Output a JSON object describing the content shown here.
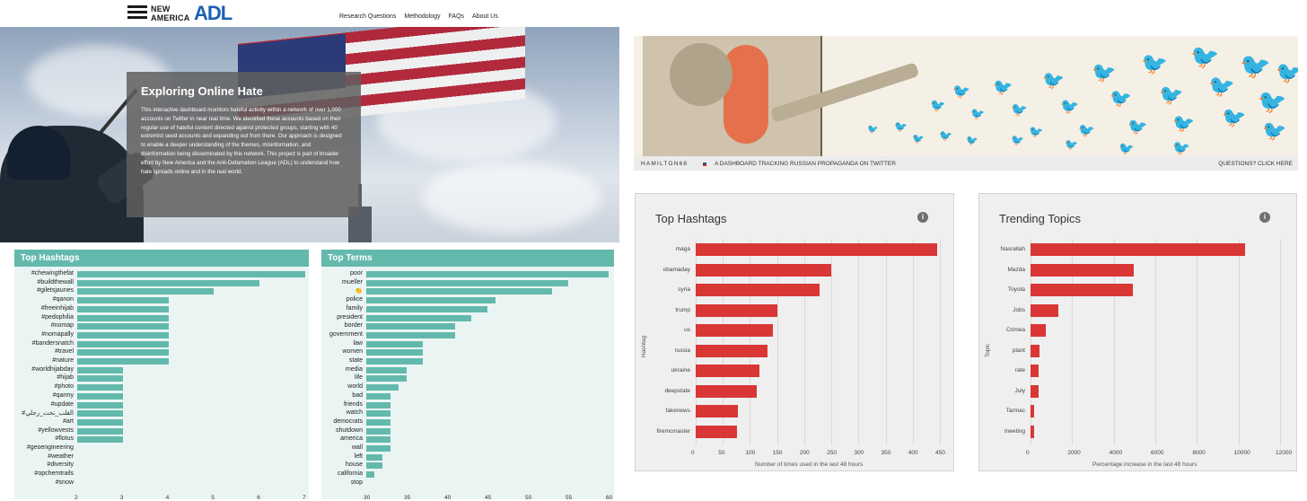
{
  "left": {
    "nav": {
      "logo_text_line1": "NEW",
      "logo_text_line2": "AMERICA",
      "adl_logo": "ADL",
      "links": [
        "Research Questions",
        "Methodology",
        "FAQs",
        "About Us"
      ]
    },
    "hero": {
      "title": "Exploring Online Hate",
      "body": "This interactive dashboard monitors hateful activity within a network of over 1,000 accounts on Twitter in near real time. We identified these accounts based on their regular use of hateful content directed against protected groups, starting with 40 extremist seed accounts and expanding out from there. Our approach is designed to enable a deeper understanding of the themes, misinformation, and disinformation being disseminated by this network. This project is part of broader effort by New America and the Anti-Defamation League (ADL) to understand how hate spreads online and in the real world."
    },
    "hashtags_title": "Top Hashtags",
    "terms_title": "Top Terms"
  },
  "right": {
    "banner": {
      "brand": "HAMILTON68",
      "tagline": "A DASHBOARD TRACKING RUSSIAN PROPAGANDA ON TWITTER",
      "questions": "QUESTIONS? CLICK HERE"
    },
    "hashtags_title": "Top Hashtags",
    "topics_title": "Trending Topics",
    "info_icon": "i"
  },
  "chart_data": [
    {
      "type": "bar",
      "orientation": "horizontal",
      "title": "Top Hashtags",
      "categories": [
        "#chewingthefat",
        "#buildthewall",
        "#giletsjaunes",
        "#qanon",
        "#freeinhijab",
        "#pedophilia",
        "#nomap",
        "#nomapally",
        "#bandersnatch",
        "#travel",
        "#nature",
        "#worldhijabday",
        "#hijab",
        "#photo",
        "#qarmy",
        "#update",
        "#القلب_تحت_رجلي",
        "#art",
        "#yellowvests",
        "#flotus",
        "#geoengineering",
        "#weather",
        "#diversity",
        "#opchemtrails",
        "#snow"
      ],
      "values": [
        7,
        6,
        5,
        4,
        4,
        4,
        4,
        4,
        4,
        4,
        4,
        3,
        3,
        3,
        3,
        3,
        3,
        3,
        3,
        3,
        2,
        2,
        2,
        2,
        2
      ],
      "xlim": [
        2,
        7
      ],
      "xticks": [
        "2",
        "3",
        "4",
        "5",
        "6",
        "7"
      ],
      "color": "#64b9ad"
    },
    {
      "type": "bar",
      "orientation": "horizontal",
      "title": "Top Terms",
      "categories": [
        "poor",
        "mueller",
        "👏",
        "police",
        "family",
        "president",
        "border",
        "government",
        "law",
        "women",
        "state",
        "media",
        "life",
        "world",
        "bad",
        "friends",
        "watch",
        "democrats",
        "shutdown",
        "america",
        "wall",
        "left",
        "house",
        "california",
        "stop"
      ],
      "values": [
        60,
        55,
        53,
        46,
        45,
        43,
        41,
        41,
        37,
        37,
        37,
        35,
        35,
        34,
        33,
        33,
        33,
        33,
        33,
        33,
        33,
        32,
        32,
        31,
        30
      ],
      "xlim": [
        30,
        60
      ],
      "xticks": [
        "30",
        "35",
        "40",
        "45",
        "50",
        "55",
        "60"
      ],
      "color": "#64b9ad"
    },
    {
      "type": "bar",
      "orientation": "horizontal",
      "title": "Top Hashtags",
      "ylabel": "Hashtag",
      "xlabel": "Number of times used in the last 48 hours",
      "categories": [
        "maga",
        "obamaday",
        "syria",
        "trump",
        "us",
        "russia",
        "ukraine",
        "deepstate",
        "fakenews",
        "firemcmaster"
      ],
      "values": [
        445,
        250,
        228,
        150,
        143,
        132,
        117,
        113,
        78,
        76
      ],
      "xlim": [
        0,
        450
      ],
      "xticks": [
        "0",
        "50",
        "100",
        "150",
        "200",
        "250",
        "300",
        "350",
        "400",
        "450"
      ],
      "color": "#d93636"
    },
    {
      "type": "bar",
      "orientation": "horizontal",
      "title": "Trending Topics",
      "ylabel": "Topic",
      "xlabel": "Percentage increase in the last 48 hours",
      "categories": [
        "Nasrallah",
        "Mazda",
        "Toyota",
        "Jobs",
        "Crimea",
        "plant",
        "rate",
        "July",
        "Tarmac",
        "meeting"
      ],
      "values": [
        10300,
        4950,
        4900,
        1350,
        750,
        430,
        400,
        370,
        170,
        160
      ],
      "xlim": [
        0,
        12000
      ],
      "xticks": [
        "0",
        "2000",
        "4000",
        "6000",
        "8000",
        "10000",
        "12000"
      ],
      "color": "#d93636"
    }
  ]
}
